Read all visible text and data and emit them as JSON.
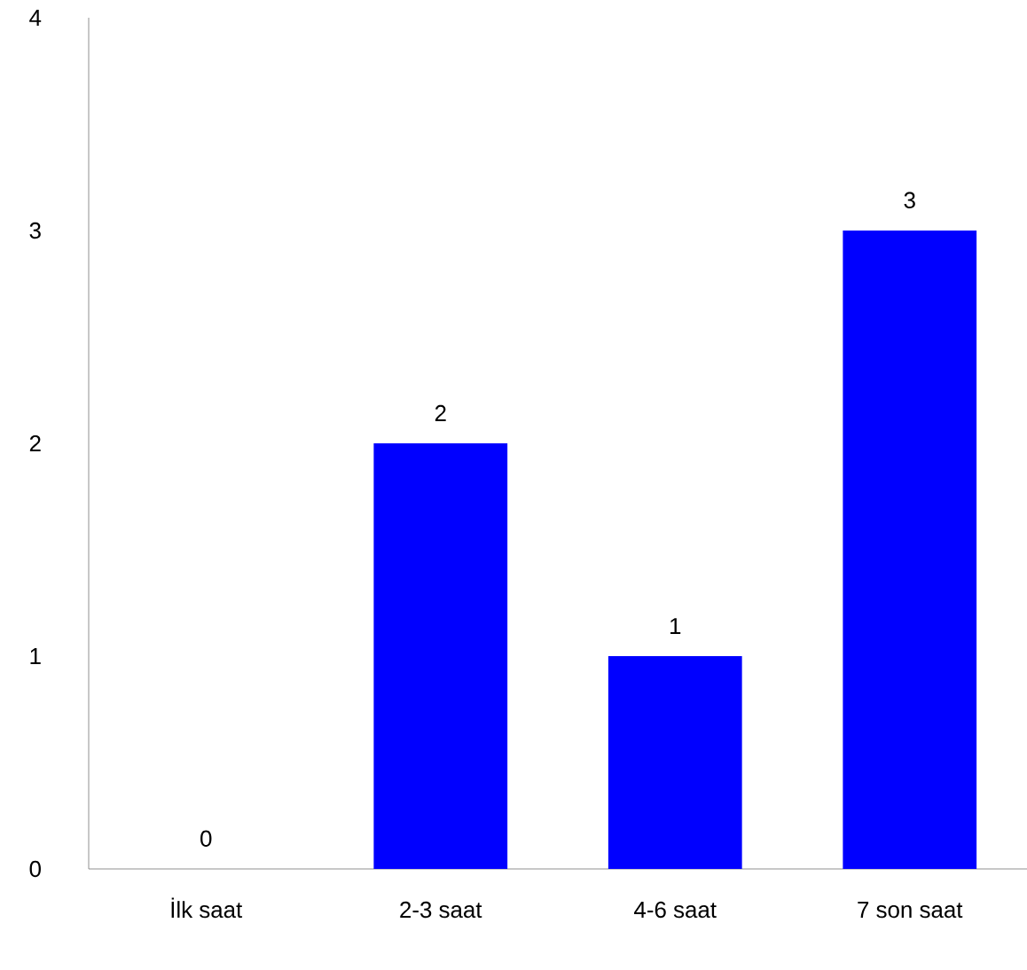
{
  "chart_data": {
    "type": "bar",
    "categories": [
      "İlk saat",
      "2-3 saat",
      "4-6 saat",
      "7 son saat"
    ],
    "values": [
      0,
      2,
      1,
      3
    ],
    "color": "#0000ff",
    "ylim": [
      0,
      4
    ],
    "yticks": [
      0,
      1,
      2,
      3,
      4
    ],
    "data_labels": true
  }
}
